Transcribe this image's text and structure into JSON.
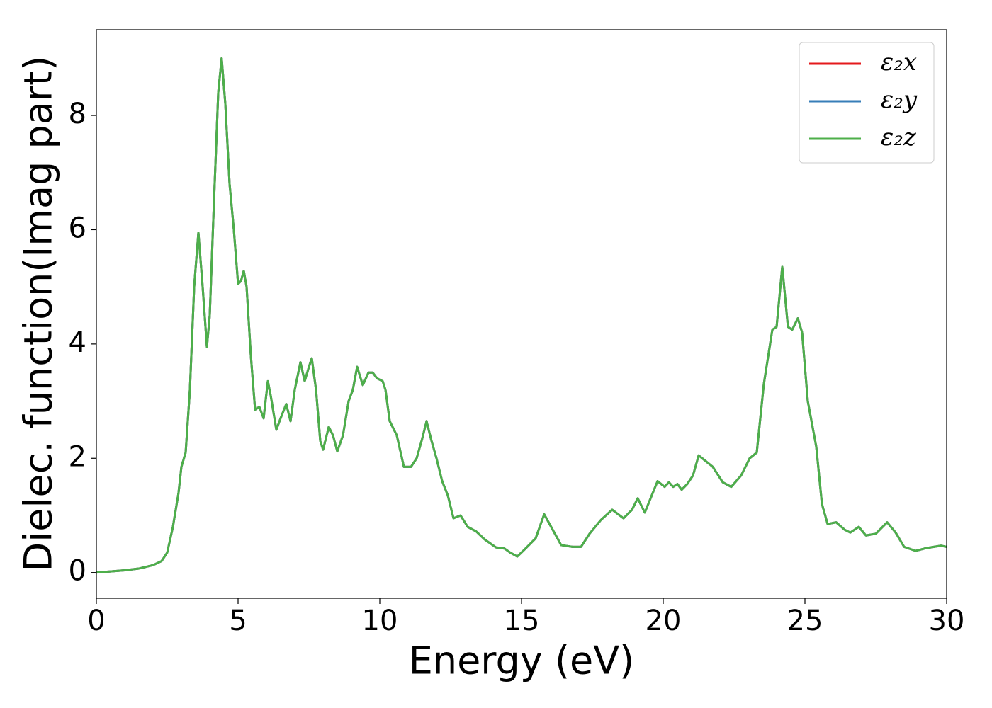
{
  "chart_data": {
    "type": "line",
    "xlabel": "Energy (eV)",
    "ylabel": "Dielec. function(Imag part)",
    "x": [
      0,
      0.5,
      1,
      1.5,
      2,
      2.3,
      2.5,
      2.7,
      2.9,
      3.0,
      3.15,
      3.3,
      3.45,
      3.6,
      3.75,
      3.9,
      4.0,
      4.15,
      4.3,
      4.42,
      4.55,
      4.7,
      4.85,
      5.0,
      5.1,
      5.2,
      5.3,
      5.45,
      5.6,
      5.75,
      5.9,
      6.05,
      6.15,
      6.35,
      6.5,
      6.7,
      6.85,
      7.0,
      7.2,
      7.35,
      7.5,
      7.6,
      7.75,
      7.9,
      8.0,
      8.2,
      8.35,
      8.5,
      8.7,
      8.9,
      9.05,
      9.2,
      9.4,
      9.6,
      9.75,
      9.9,
      10.1,
      10.2,
      10.35,
      10.6,
      10.85,
      11.1,
      11.3,
      11.5,
      11.65,
      11.8,
      12.0,
      12.2,
      12.4,
      12.6,
      12.85,
      13.1,
      13.4,
      13.7,
      14.1,
      14.4,
      14.6,
      14.85,
      15.1,
      15.5,
      15.8,
      16.1,
      16.4,
      16.8,
      17.1,
      17.4,
      17.8,
      18.2,
      18.6,
      18.9,
      19.1,
      19.35,
      19.8,
      20.05,
      20.2,
      20.35,
      20.5,
      20.65,
      20.85,
      21.05,
      21.25,
      21.5,
      21.75,
      22.1,
      22.4,
      22.75,
      23.05,
      23.3,
      23.55,
      23.85,
      24.0,
      24.2,
      24.4,
      24.55,
      24.75,
      24.9,
      25.1,
      25.4,
      25.6,
      25.8,
      26.1,
      26.4,
      26.6,
      26.9,
      27.15,
      27.5,
      27.9,
      28.2,
      28.5,
      28.9,
      29.3,
      29.8,
      30
    ],
    "series": [
      {
        "name": "ε₂x",
        "color": "#e41a1c",
        "values": [
          0,
          0.02,
          0.04,
          0.07,
          0.13,
          0.2,
          0.35,
          0.8,
          1.4,
          1.85,
          2.1,
          3.2,
          5.0,
          5.95,
          5.0,
          3.95,
          4.5,
          6.5,
          8.4,
          9.0,
          8.2,
          6.8,
          6.0,
          5.05,
          5.1,
          5.28,
          5.0,
          3.8,
          2.85,
          2.9,
          2.7,
          3.35,
          3.1,
          2.5,
          2.7,
          2.95,
          2.65,
          3.2,
          3.68,
          3.35,
          3.6,
          3.75,
          3.2,
          2.3,
          2.15,
          2.55,
          2.4,
          2.12,
          2.4,
          3.0,
          3.2,
          3.6,
          3.28,
          3.5,
          3.5,
          3.4,
          3.35,
          3.2,
          2.65,
          2.4,
          1.85,
          1.85,
          2.0,
          2.35,
          2.65,
          2.35,
          2.0,
          1.6,
          1.35,
          0.95,
          1.0,
          0.8,
          0.72,
          0.58,
          0.44,
          0.42,
          0.35,
          0.28,
          0.4,
          0.6,
          1.02,
          0.75,
          0.48,
          0.45,
          0.45,
          0.68,
          0.92,
          1.1,
          0.95,
          1.1,
          1.3,
          1.05,
          1.6,
          1.5,
          1.58,
          1.5,
          1.55,
          1.45,
          1.55,
          1.7,
          2.05,
          1.95,
          1.85,
          1.58,
          1.5,
          1.7,
          2.0,
          2.1,
          3.3,
          4.25,
          4.3,
          5.35,
          4.3,
          4.25,
          4.45,
          4.2,
          3.0,
          2.2,
          1.2,
          0.85,
          0.88,
          0.75,
          0.7,
          0.8,
          0.65,
          0.68,
          0.88,
          0.7,
          0.45,
          0.38,
          0.43,
          0.47,
          0.45
        ]
      },
      {
        "name": "ε₂y",
        "color": "#377eb8",
        "values": [
          0,
          0.02,
          0.04,
          0.07,
          0.13,
          0.2,
          0.35,
          0.8,
          1.4,
          1.85,
          2.1,
          3.2,
          5.0,
          5.95,
          5.0,
          3.95,
          4.5,
          6.5,
          8.4,
          9.0,
          8.2,
          6.8,
          6.0,
          5.05,
          5.1,
          5.28,
          5.0,
          3.8,
          2.85,
          2.9,
          2.7,
          3.35,
          3.1,
          2.5,
          2.7,
          2.95,
          2.65,
          3.2,
          3.68,
          3.35,
          3.6,
          3.75,
          3.2,
          2.3,
          2.15,
          2.55,
          2.4,
          2.12,
          2.4,
          3.0,
          3.2,
          3.6,
          3.28,
          3.5,
          3.5,
          3.4,
          3.35,
          3.2,
          2.65,
          2.4,
          1.85,
          1.85,
          2.0,
          2.35,
          2.65,
          2.35,
          2.0,
          1.6,
          1.35,
          0.95,
          1.0,
          0.8,
          0.72,
          0.58,
          0.44,
          0.42,
          0.35,
          0.28,
          0.4,
          0.6,
          1.02,
          0.75,
          0.48,
          0.45,
          0.45,
          0.68,
          0.92,
          1.1,
          0.95,
          1.1,
          1.3,
          1.05,
          1.6,
          1.5,
          1.58,
          1.5,
          1.55,
          1.45,
          1.55,
          1.7,
          2.05,
          1.95,
          1.85,
          1.58,
          1.5,
          1.7,
          2.0,
          2.1,
          3.3,
          4.25,
          4.3,
          5.35,
          4.3,
          4.25,
          4.45,
          4.2,
          3.0,
          2.2,
          1.2,
          0.85,
          0.88,
          0.75,
          0.7,
          0.8,
          0.65,
          0.68,
          0.88,
          0.7,
          0.45,
          0.38,
          0.43,
          0.47,
          0.45
        ]
      },
      {
        "name": "ε₂z",
        "color": "#4daf4a",
        "values": [
          0,
          0.02,
          0.04,
          0.07,
          0.13,
          0.2,
          0.35,
          0.8,
          1.4,
          1.85,
          2.1,
          3.2,
          5.0,
          5.95,
          5.0,
          3.95,
          4.5,
          6.5,
          8.4,
          9.0,
          8.2,
          6.8,
          6.0,
          5.05,
          5.1,
          5.28,
          5.0,
          3.8,
          2.85,
          2.9,
          2.7,
          3.35,
          3.1,
          2.5,
          2.7,
          2.95,
          2.65,
          3.2,
          3.68,
          3.35,
          3.6,
          3.75,
          3.2,
          2.3,
          2.15,
          2.55,
          2.4,
          2.12,
          2.4,
          3.0,
          3.2,
          3.6,
          3.28,
          3.5,
          3.5,
          3.4,
          3.35,
          3.2,
          2.65,
          2.4,
          1.85,
          1.85,
          2.0,
          2.35,
          2.65,
          2.35,
          2.0,
          1.6,
          1.35,
          0.95,
          1.0,
          0.8,
          0.72,
          0.58,
          0.44,
          0.42,
          0.35,
          0.28,
          0.4,
          0.6,
          1.02,
          0.75,
          0.48,
          0.45,
          0.45,
          0.68,
          0.92,
          1.1,
          0.95,
          1.1,
          1.3,
          1.05,
          1.6,
          1.5,
          1.58,
          1.5,
          1.55,
          1.45,
          1.55,
          1.7,
          2.05,
          1.95,
          1.85,
          1.58,
          1.5,
          1.7,
          2.0,
          2.1,
          3.3,
          4.25,
          4.3,
          5.35,
          4.3,
          4.25,
          4.45,
          4.2,
          3.0,
          2.2,
          1.2,
          0.85,
          0.88,
          0.75,
          0.7,
          0.8,
          0.65,
          0.68,
          0.88,
          0.7,
          0.45,
          0.38,
          0.43,
          0.47,
          0.45
        ]
      }
    ],
    "xlim": [
      0,
      30
    ],
    "xticks": [
      0,
      5,
      10,
      15,
      20,
      25,
      30
    ],
    "ylim": [
      -0.45,
      9.5
    ],
    "yticks": [
      0,
      2,
      4,
      6,
      8
    ],
    "grid": false,
    "legend": "upper right"
  }
}
